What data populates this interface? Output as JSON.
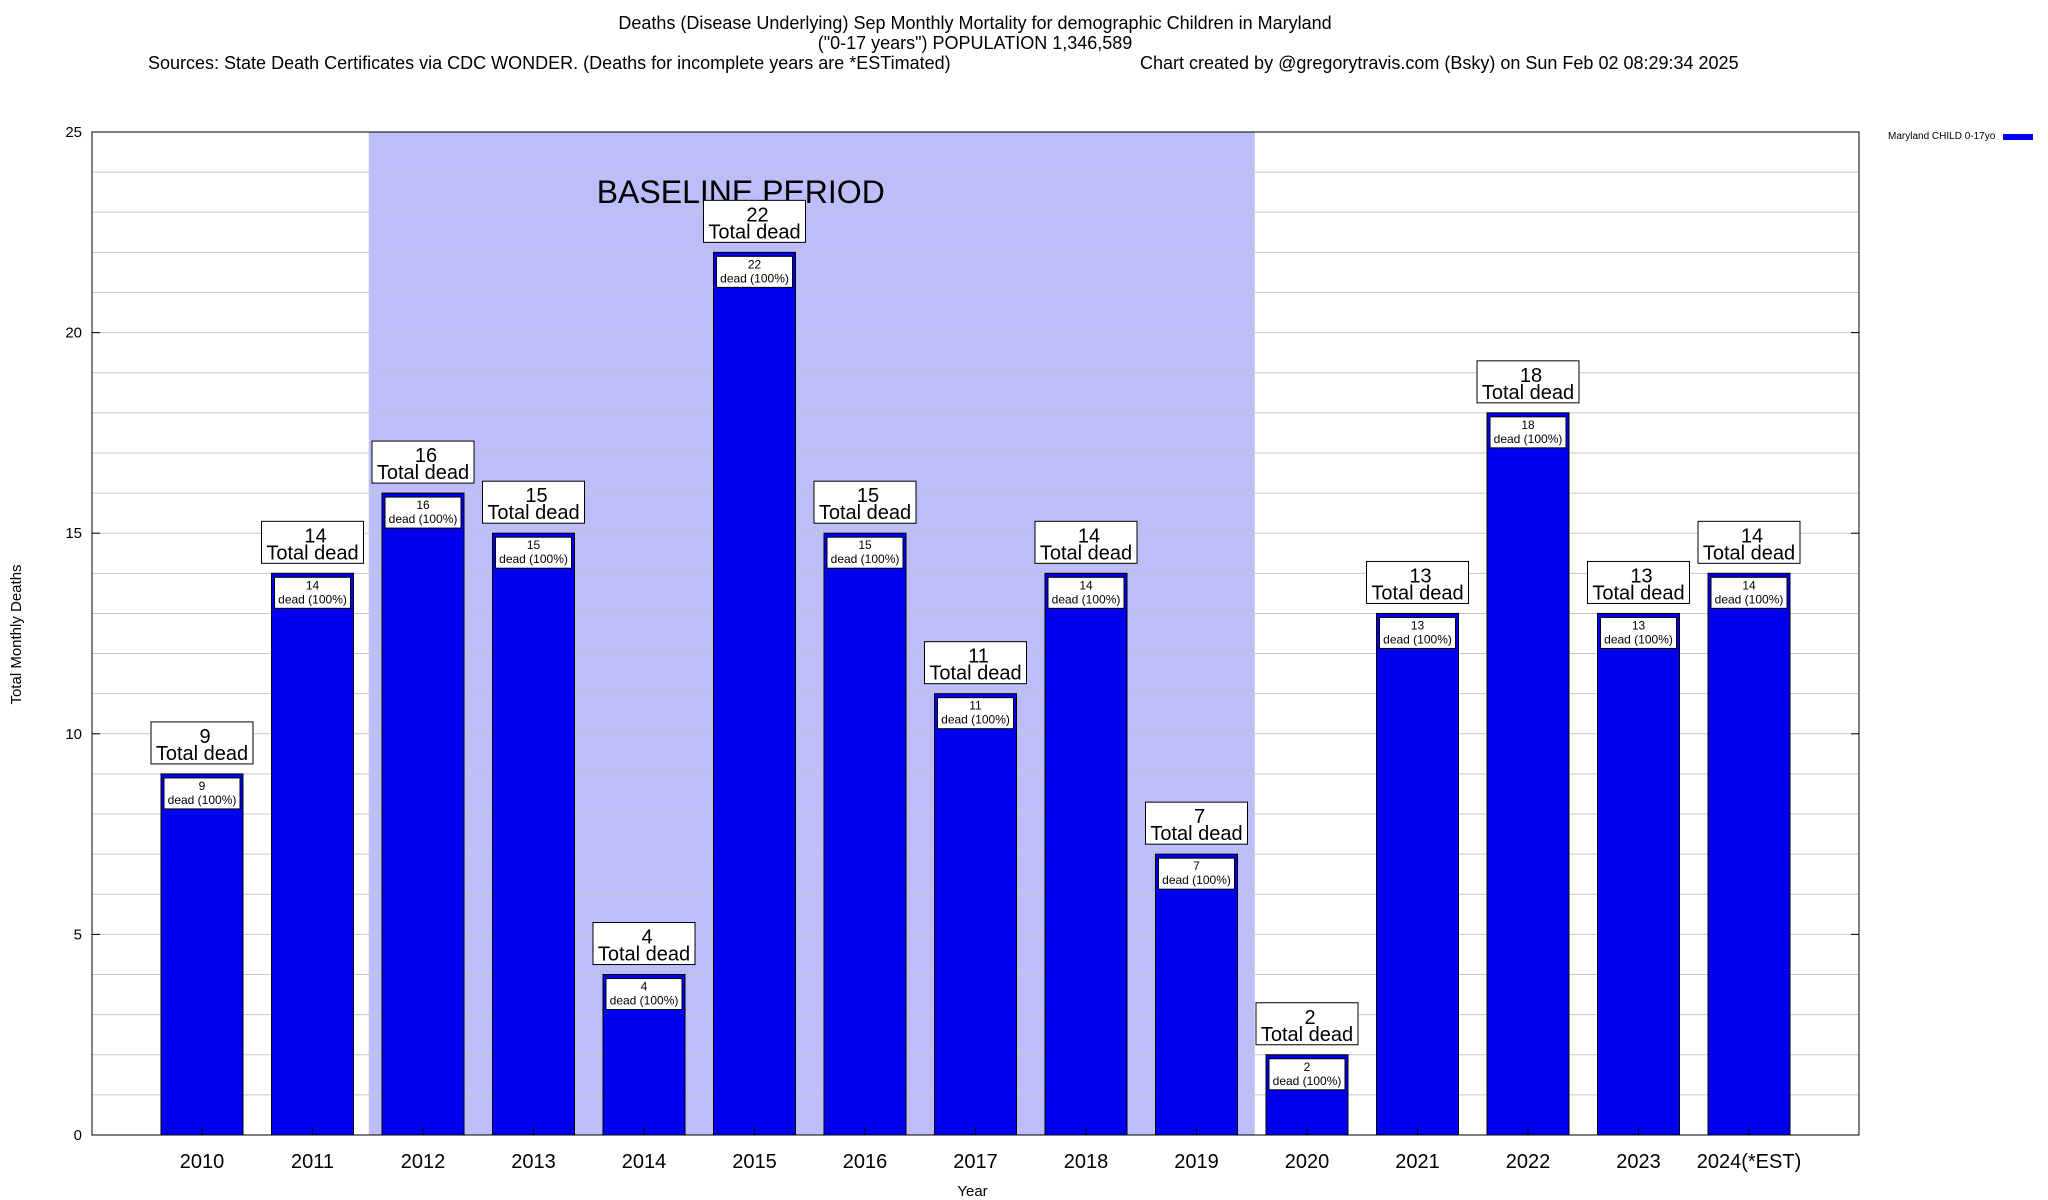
{
  "header": {
    "title": "Deaths (Disease Underlying) Sep Monthly Mortality for demographic Children in Maryland",
    "subtitle": "(\"0-17 years\") POPULATION 1,346,589",
    "sources": "Sources: State Death Certificates via CDC WONDER. (Deaths for incomplete years are *ESTimated)",
    "credit": "Chart created by @gregorytravis.com (Bsky) on Sun Feb 02 08:29:34 2025"
  },
  "legend": {
    "label": "Maryland CHILD 0-17yo",
    "color": "#0000ee"
  },
  "chart_data": {
    "type": "bar",
    "title": "Deaths (Disease Underlying) Sep Monthly Mortality for demographic Children in Maryland",
    "xlabel": "Year",
    "ylabel": "Total Monthly Deaths",
    "ylim": [
      0,
      25
    ],
    "yticks": [
      0,
      5,
      10,
      15,
      20,
      25
    ],
    "grid": true,
    "legend_position": "top-right",
    "categories": [
      "2010",
      "2011",
      "2012",
      "2013",
      "2014",
      "2015",
      "2016",
      "2017",
      "2018",
      "2019",
      "2020",
      "2021",
      "2022",
      "2023",
      "2024(*EST)"
    ],
    "series": [
      {
        "name": "Maryland CHILD 0-17yo",
        "color": "#0000ee",
        "values": [
          9,
          14,
          16,
          15,
          4,
          22,
          15,
          11,
          14,
          7,
          2,
          13,
          18,
          13,
          14
        ]
      }
    ],
    "data_labels": {
      "total_caption": "Total dead",
      "inner_caption": "dead (100%)"
    },
    "baseline": {
      "label": "BASELINE PERIOD",
      "start": "2012",
      "end": "2019",
      "color": "#bdbdfa"
    }
  }
}
